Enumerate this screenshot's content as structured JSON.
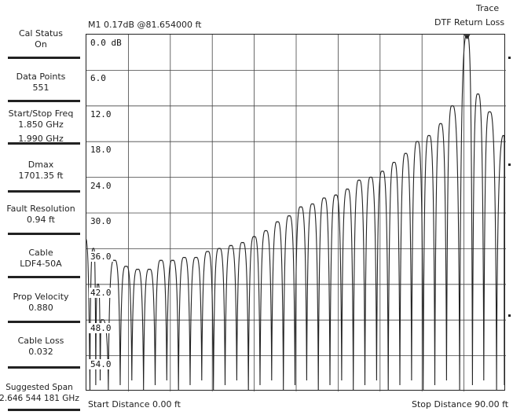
{
  "sidebar": {
    "items": [
      {
        "label": "Cal Status",
        "value": "On"
      },
      {
        "label": "Data Points",
        "value": "551"
      },
      {
        "label": "Start/Stop Freq",
        "value": "1.850 GHz",
        "value2": "1.990 GHz"
      },
      {
        "label": "Dmax",
        "value": "1701.35 ft"
      },
      {
        "label": "Fault Resolution",
        "value": "0.94 ft"
      },
      {
        "label": "Cable",
        "value": "LDF4-50A"
      },
      {
        "label": "Prop Velocity",
        "value": "0.880"
      },
      {
        "label": "Cable Loss",
        "value": "0.032"
      },
      {
        "label": "Suggested Span",
        "value": "2.646 544 181 GHz"
      }
    ]
  },
  "header": {
    "marker": "M1 0.17dB @81.654000 ft",
    "trace_label": "Trace",
    "mode": "DTF Return Loss"
  },
  "footer": {
    "start": "Start Distance 0.00 ft",
    "stop": "Stop Distance 90.00 ft"
  },
  "chart_data": {
    "type": "line",
    "xlabel": "",
    "ylabel": "",
    "x_range": [
      0,
      90
    ],
    "y_axis_labels": [
      "0.0 dB",
      "6.0",
      "12.0",
      "18.0",
      "24.0",
      "30.0",
      "36.0",
      "42.0",
      "48.0",
      "54.0"
    ],
    "ylim": [
      0,
      60
    ],
    "y_inverted": true,
    "grid": true,
    "x_divisions": 10,
    "series": [
      {
        "x": [
          0.0,
          1.5,
          2.5,
          3.4,
          6.0,
          8.5,
          11.0,
          13.5,
          16.0,
          18.5,
          21.0,
          23.5,
          26.0,
          28.5,
          31.0,
          33.5,
          36.0,
          38.5,
          41.0,
          43.5,
          46.0,
          48.5,
          51.0,
          53.5,
          56.0,
          58.5,
          61.0,
          63.5,
          66.0,
          68.5,
          71.0,
          73.5,
          76.0,
          78.5,
          81.654,
          84.0,
          86.5,
          89.5
        ],
        "y": [
          34.5,
          36.0,
          42.0,
          48.0,
          38.0,
          39.0,
          39.5,
          39.5,
          38.0,
          38.0,
          37.5,
          37.5,
          36.5,
          36.0,
          35.5,
          35.0,
          34.0,
          33.0,
          31.5,
          30.5,
          29.0,
          28.5,
          27.5,
          27.0,
          26.0,
          24.5,
          24.0,
          23.0,
          21.5,
          20.0,
          18.0,
          17.0,
          15.0,
          12.0,
          0.17,
          10.0,
          13.0,
          17.0
        ],
        "stroke": "#222222"
      }
    ],
    "marker": {
      "x": 81.654,
      "y": 0.17
    }
  }
}
